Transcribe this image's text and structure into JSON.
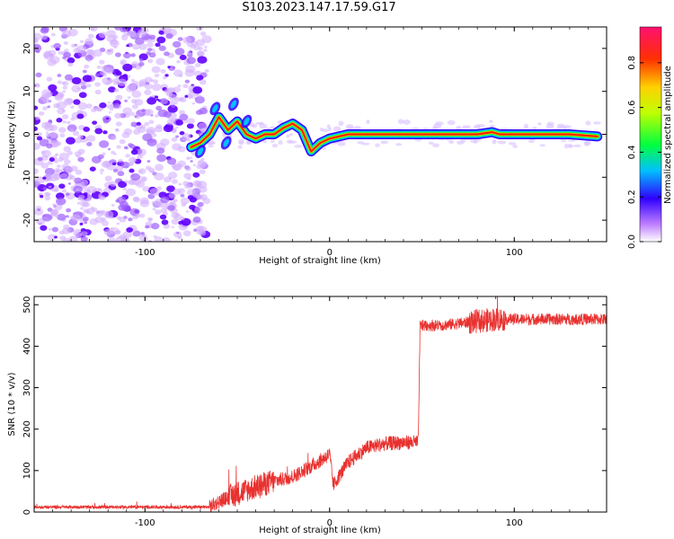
{
  "title": "S103.2023.147.17.59.G17",
  "chart_data": [
    {
      "type": "heatmap",
      "xlabel": "Height of straight line (km)",
      "ylabel": "Frequency (Hz)",
      "xlim": [
        -160,
        150
      ],
      "ylim": [
        -25,
        25
      ],
      "xticks": [
        -100,
        0,
        100
      ],
      "yticks": [
        -20,
        -10,
        0,
        10,
        20
      ],
      "colorbar": {
        "label": "Normalized spectral amplitude",
        "range": [
          0,
          0.96
        ],
        "ticks": [
          0.0,
          0.2,
          0.4,
          0.6,
          0.8
        ]
      },
      "ridge": [
        {
          "x": -75,
          "y": -3
        },
        {
          "x": -70,
          "y": -2
        },
        {
          "x": -65,
          "y": 0
        },
        {
          "x": -60,
          "y": 4
        },
        {
          "x": -55,
          "y": 1
        },
        {
          "x": -50,
          "y": 3
        },
        {
          "x": -45,
          "y": 0
        },
        {
          "x": -40,
          "y": -1
        },
        {
          "x": -35,
          "y": 0
        },
        {
          "x": -30,
          "y": 0
        },
        {
          "x": -25,
          "y": 1.5
        },
        {
          "x": -20,
          "y": 2.5
        },
        {
          "x": -15,
          "y": 1
        },
        {
          "x": -10,
          "y": -4
        },
        {
          "x": -5,
          "y": -2
        },
        {
          "x": 0,
          "y": -1
        },
        {
          "x": 10,
          "y": 0
        },
        {
          "x": 50,
          "y": 0
        },
        {
          "x": 80,
          "y": 0
        },
        {
          "x": 88,
          "y": 0.5
        },
        {
          "x": 92,
          "y": 0
        },
        {
          "x": 130,
          "y": 0
        },
        {
          "x": 145,
          "y": -0.5
        }
      ]
    },
    {
      "type": "line",
      "xlabel": "Height of straight line (km)",
      "ylabel": "SNR (10 * v/v)",
      "xlim": [
        -160,
        150
      ],
      "ylim": [
        0,
        520
      ],
      "xticks": [
        -100,
        0,
        100
      ],
      "yticks": [
        0,
        100,
        200,
        300,
        400,
        500
      ],
      "series_color": "#e8312f",
      "trend": [
        {
          "x": -160,
          "y": 12
        },
        {
          "x": -65,
          "y": 12
        },
        {
          "x": -60,
          "y": 25
        },
        {
          "x": -50,
          "y": 45
        },
        {
          "x": -40,
          "y": 60
        },
        {
          "x": -30,
          "y": 75
        },
        {
          "x": -20,
          "y": 85
        },
        {
          "x": -10,
          "y": 110
        },
        {
          "x": -3,
          "y": 130
        },
        {
          "x": 0,
          "y": 140
        },
        {
          "x": 2,
          "y": 65
        },
        {
          "x": 10,
          "y": 120
        },
        {
          "x": 20,
          "y": 155
        },
        {
          "x": 30,
          "y": 165
        },
        {
          "x": 40,
          "y": 168
        },
        {
          "x": 48,
          "y": 168
        },
        {
          "x": 49,
          "y": 450
        },
        {
          "x": 60,
          "y": 450
        },
        {
          "x": 80,
          "y": 460
        },
        {
          "x": 90,
          "y": 465
        },
        {
          "x": 110,
          "y": 465
        },
        {
          "x": 150,
          "y": 465
        }
      ]
    }
  ]
}
